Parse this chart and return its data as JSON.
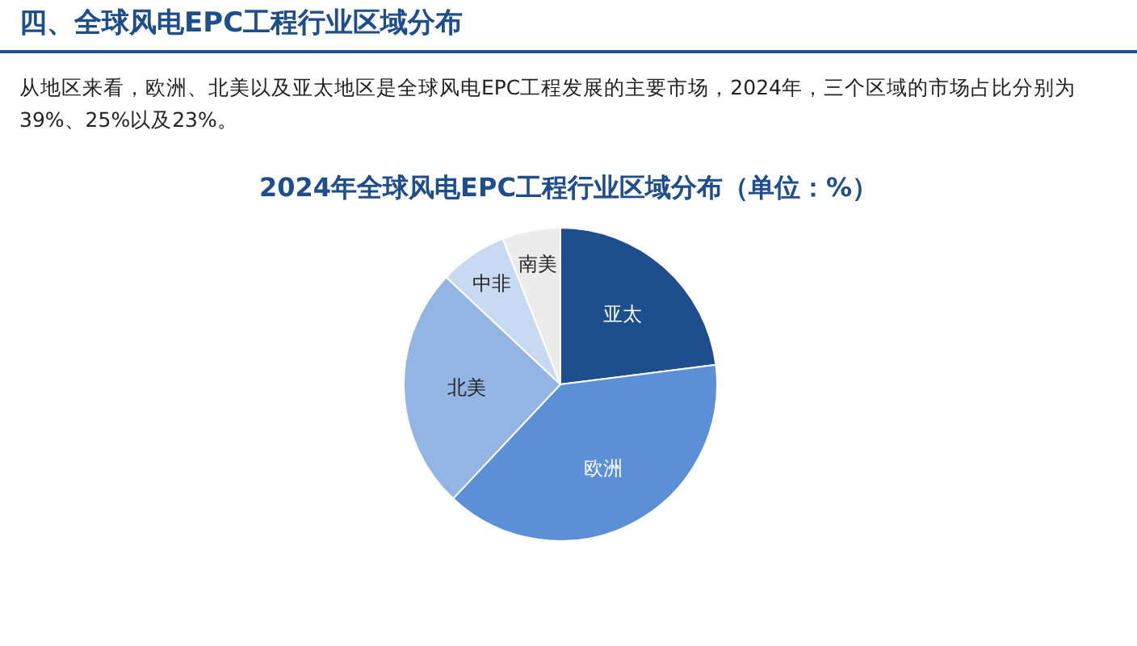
{
  "chart_data": {
    "type": "pie",
    "title": "2024年全球风电EPC工程行业区域分布（单位：%）",
    "subtitle": "从地区来看，欧洲、北美以及亚太地区是全球风电EPC工程发展的主要市场，2024年，三个区域的市场占比分别为39%、25%以及23%。",
    "annotations": [
      "四、全球风电EPC工程行业区域分布"
    ],
    "categories": [
      "亚太",
      "欧洲",
      "北美",
      "中非",
      "南美"
    ],
    "values": [
      23,
      39,
      25,
      7,
      6
    ],
    "colors": [
      "#1f4e8c",
      "#5b8fd6",
      "#92b5e4",
      "#c8daf1",
      "#ececec"
    ],
    "legend": false
  }
}
